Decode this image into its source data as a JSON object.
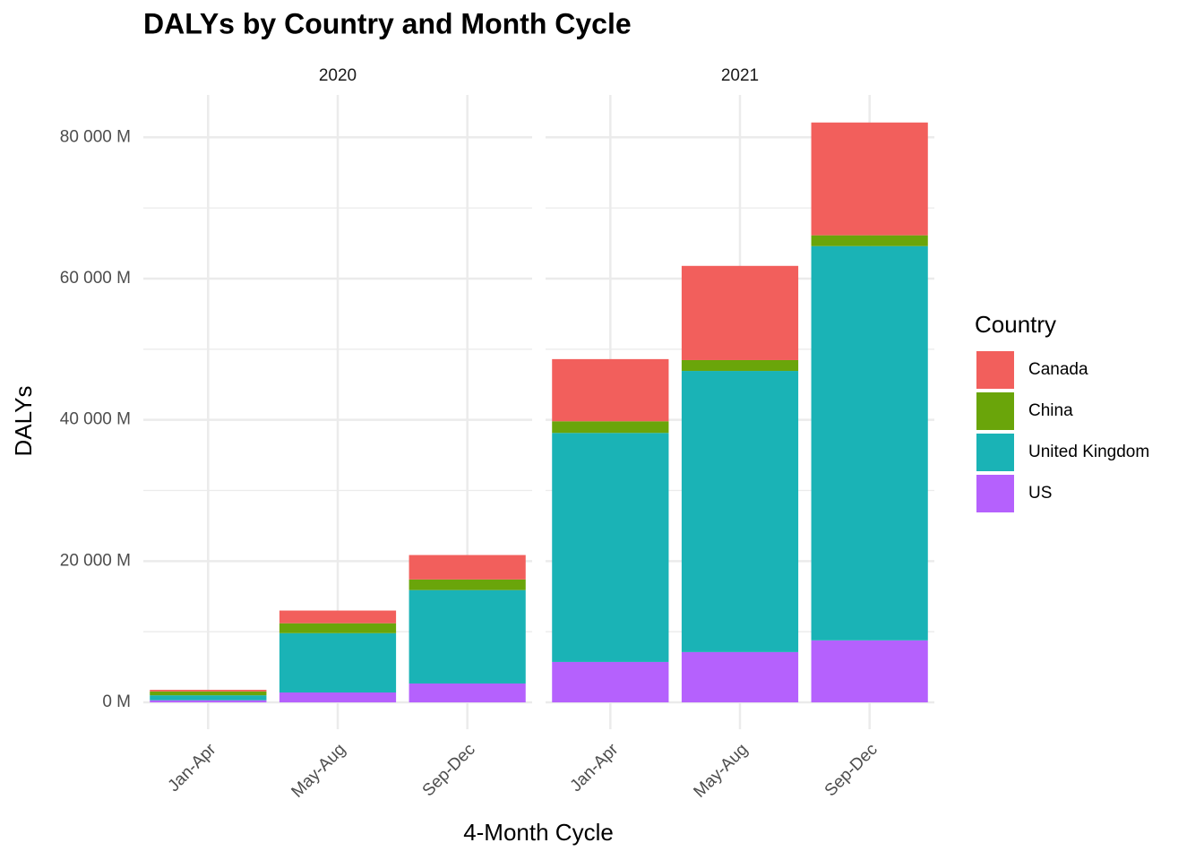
{
  "chart_data": {
    "type": "bar",
    "stacked": true,
    "title": "DALYs by Country and Month Cycle",
    "xlabel": "4-Month Cycle",
    "ylabel": "DALYs",
    "legend_title": "Country",
    "legend": "right",
    "grid": true,
    "ylim": [
      -3800,
      86000
    ],
    "yticks": [
      {
        "value": 0,
        "label": "0 M"
      },
      {
        "value": 20000,
        "label": "20 000 M"
      },
      {
        "value": 40000,
        "label": "40 000 M"
      },
      {
        "value": 60000,
        "label": "60 000 M"
      },
      {
        "value": 80000,
        "label": "80 000 M"
      }
    ],
    "series": [
      {
        "name": "Canada",
        "color": "#f25f5c"
      },
      {
        "name": "China",
        "color": "#6aa50a"
      },
      {
        "name": "United Kingdom",
        "color": "#1ab3b6"
      },
      {
        "name": "US",
        "color": "#b561fd"
      }
    ],
    "facets": [
      {
        "label": "2020",
        "categories": [
          "Jan-Apr",
          "May-Aug",
          "Sep-Dec"
        ],
        "values": [
          [
            230,
            1800,
            3460
          ],
          [
            550,
            1400,
            1500
          ],
          [
            700,
            8400,
            13230
          ],
          [
            300,
            1400,
            2670
          ]
        ]
      },
      {
        "label": "2021",
        "categories": [
          "Jan-Apr",
          "May-Aug",
          "Sep-Dec"
        ],
        "values": [
          [
            8800,
            13340,
            15970
          ],
          [
            1650,
            1530,
            1530
          ],
          [
            32430,
            39810,
            55820
          ],
          [
            5720,
            7120,
            8780
          ]
        ]
      }
    ]
  }
}
